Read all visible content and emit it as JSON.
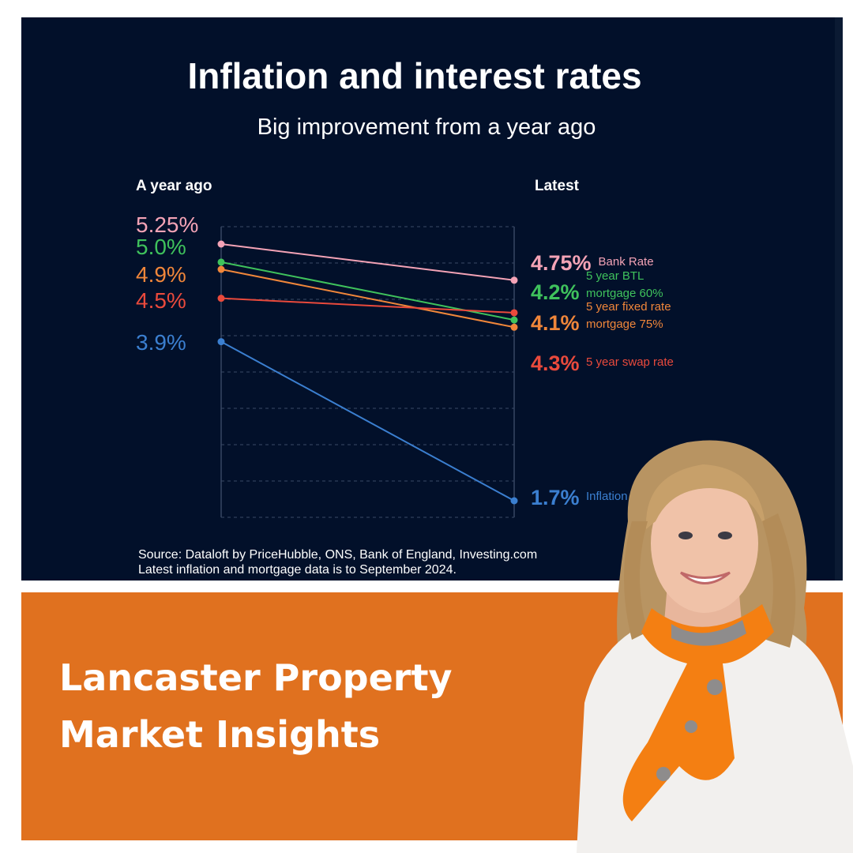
{
  "chart_data": {
    "type": "line",
    "title": "Inflation and interest rates",
    "subtitle": "Big improvement from a year ago",
    "categories": [
      "A year ago",
      "Latest"
    ],
    "series": [
      {
        "name": "Bank Rate",
        "values": [
          5.25,
          4.75
        ],
        "left_label": "5.25%",
        "right_label": "4.75%",
        "label_lines": [
          "Bank Rate"
        ],
        "color": "#f4a3b6"
      },
      {
        "name": "5 year BTL mortgage 60%",
        "values": [
          5.0,
          4.2
        ],
        "left_label": "5.0%",
        "right_label": "4.2%",
        "label_lines": [
          "5 year BTL",
          "mortgage 60%"
        ],
        "color": "#3fc25c"
      },
      {
        "name": "5 year fixed rate mortgage 75%",
        "values": [
          4.9,
          4.1
        ],
        "left_label": "4.9%",
        "right_label": "4.1%",
        "label_lines": [
          "5 year fixed rate",
          "mortgage 75%"
        ],
        "color": "#f0863a"
      },
      {
        "name": "5 year swap rate",
        "values": [
          4.5,
          4.3
        ],
        "left_label": "4.5%",
        "right_label": "4.3%",
        "label_lines": [
          "5 year swap rate"
        ],
        "color": "#ea4a3c"
      },
      {
        "name": "Inflation",
        "values": [
          3.9,
          1.7
        ],
        "left_label": "3.9%",
        "right_label": "1.7%",
        "label_lines": [
          "Inflation"
        ],
        "color": "#3b7fd0"
      }
    ],
    "source_lines": [
      "Source: Dataloft by PriceHubble, ONS, Bank of England, Investing.com",
      "Latest inflation and mortgage data is to September 2024."
    ]
  },
  "banner": {
    "title_lines": [
      "Lancaster Property",
      "Market Insights"
    ]
  }
}
